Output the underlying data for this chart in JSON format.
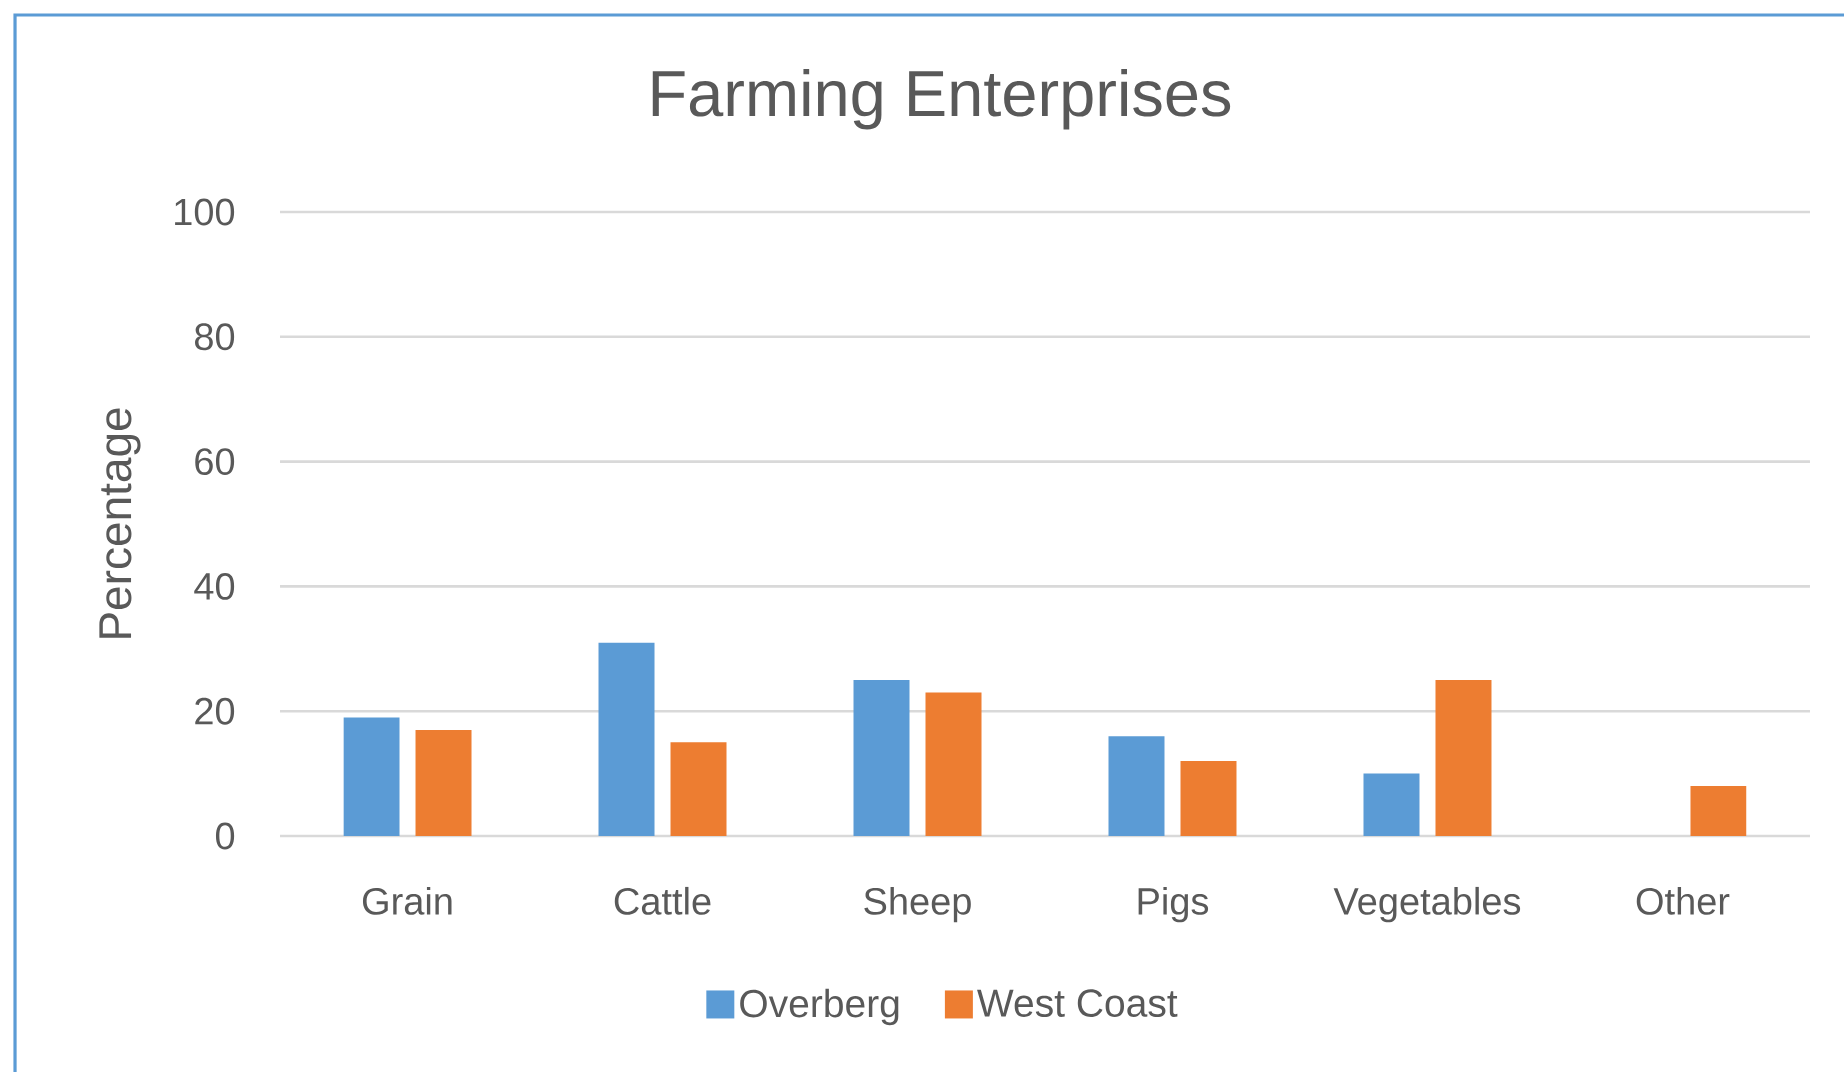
{
  "chart_data": {
    "type": "bar",
    "title": "Farming Enterprises",
    "ylabel": "Percentage",
    "categories": [
      "Grain",
      "Cattle",
      "Sheep",
      "Pigs",
      "Vegetables",
      "Other"
    ],
    "series": [
      {
        "name": "Overberg",
        "color": "#5b9bd5",
        "values": [
          19,
          31,
          25,
          16,
          10,
          null
        ]
      },
      {
        "name": "West Coast",
        "color": "#ed7d31",
        "values": [
          17,
          15,
          23,
          12,
          25,
          8
        ]
      }
    ],
    "ylim": [
      0,
      100
    ],
    "yticks": [
      0,
      20,
      40,
      60,
      80,
      100
    ],
    "grid": "y",
    "legend": "bottom"
  }
}
